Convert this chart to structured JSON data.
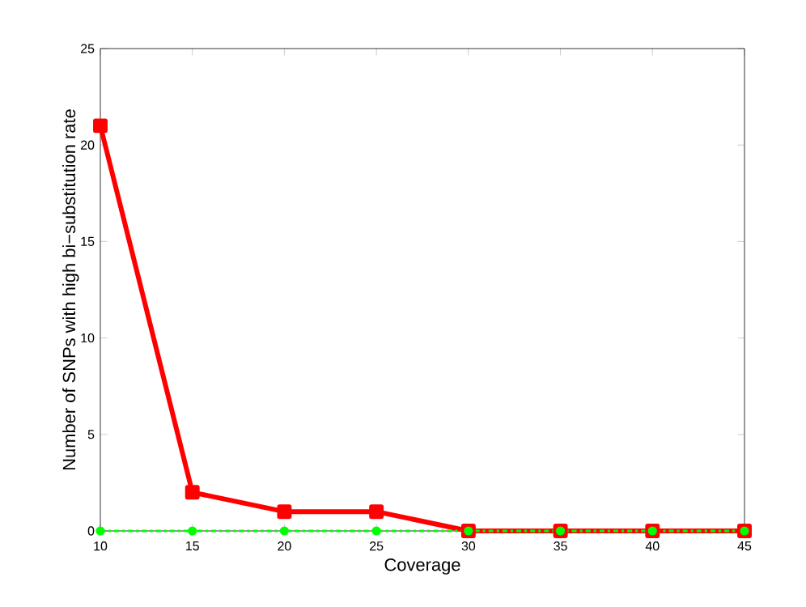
{
  "chart_data": {
    "type": "line",
    "xlabel": "Coverage",
    "ylabel": "Number of SNPs with high bi−substitution rate",
    "x": [
      10,
      15,
      20,
      25,
      30,
      35,
      40,
      45
    ],
    "series": [
      {
        "color": "#ff0000",
        "values": [
          21,
          2,
          1,
          1,
          0,
          0,
          0,
          0
        ],
        "marker": "square",
        "line_style": "solid"
      },
      {
        "color": "#00ff00",
        "values": [
          0,
          0,
          0,
          0,
          0,
          0,
          0,
          0
        ],
        "marker": "circle",
        "line_style": "dashdot"
      }
    ],
    "xlim": [
      10,
      45
    ],
    "xticks": [
      10,
      15,
      20,
      25,
      30,
      35,
      40,
      45
    ],
    "ylim": [
      0,
      25
    ],
    "yticks": [
      0,
      5,
      10,
      15,
      20,
      25
    ],
    "grid": false,
    "legend": false
  }
}
